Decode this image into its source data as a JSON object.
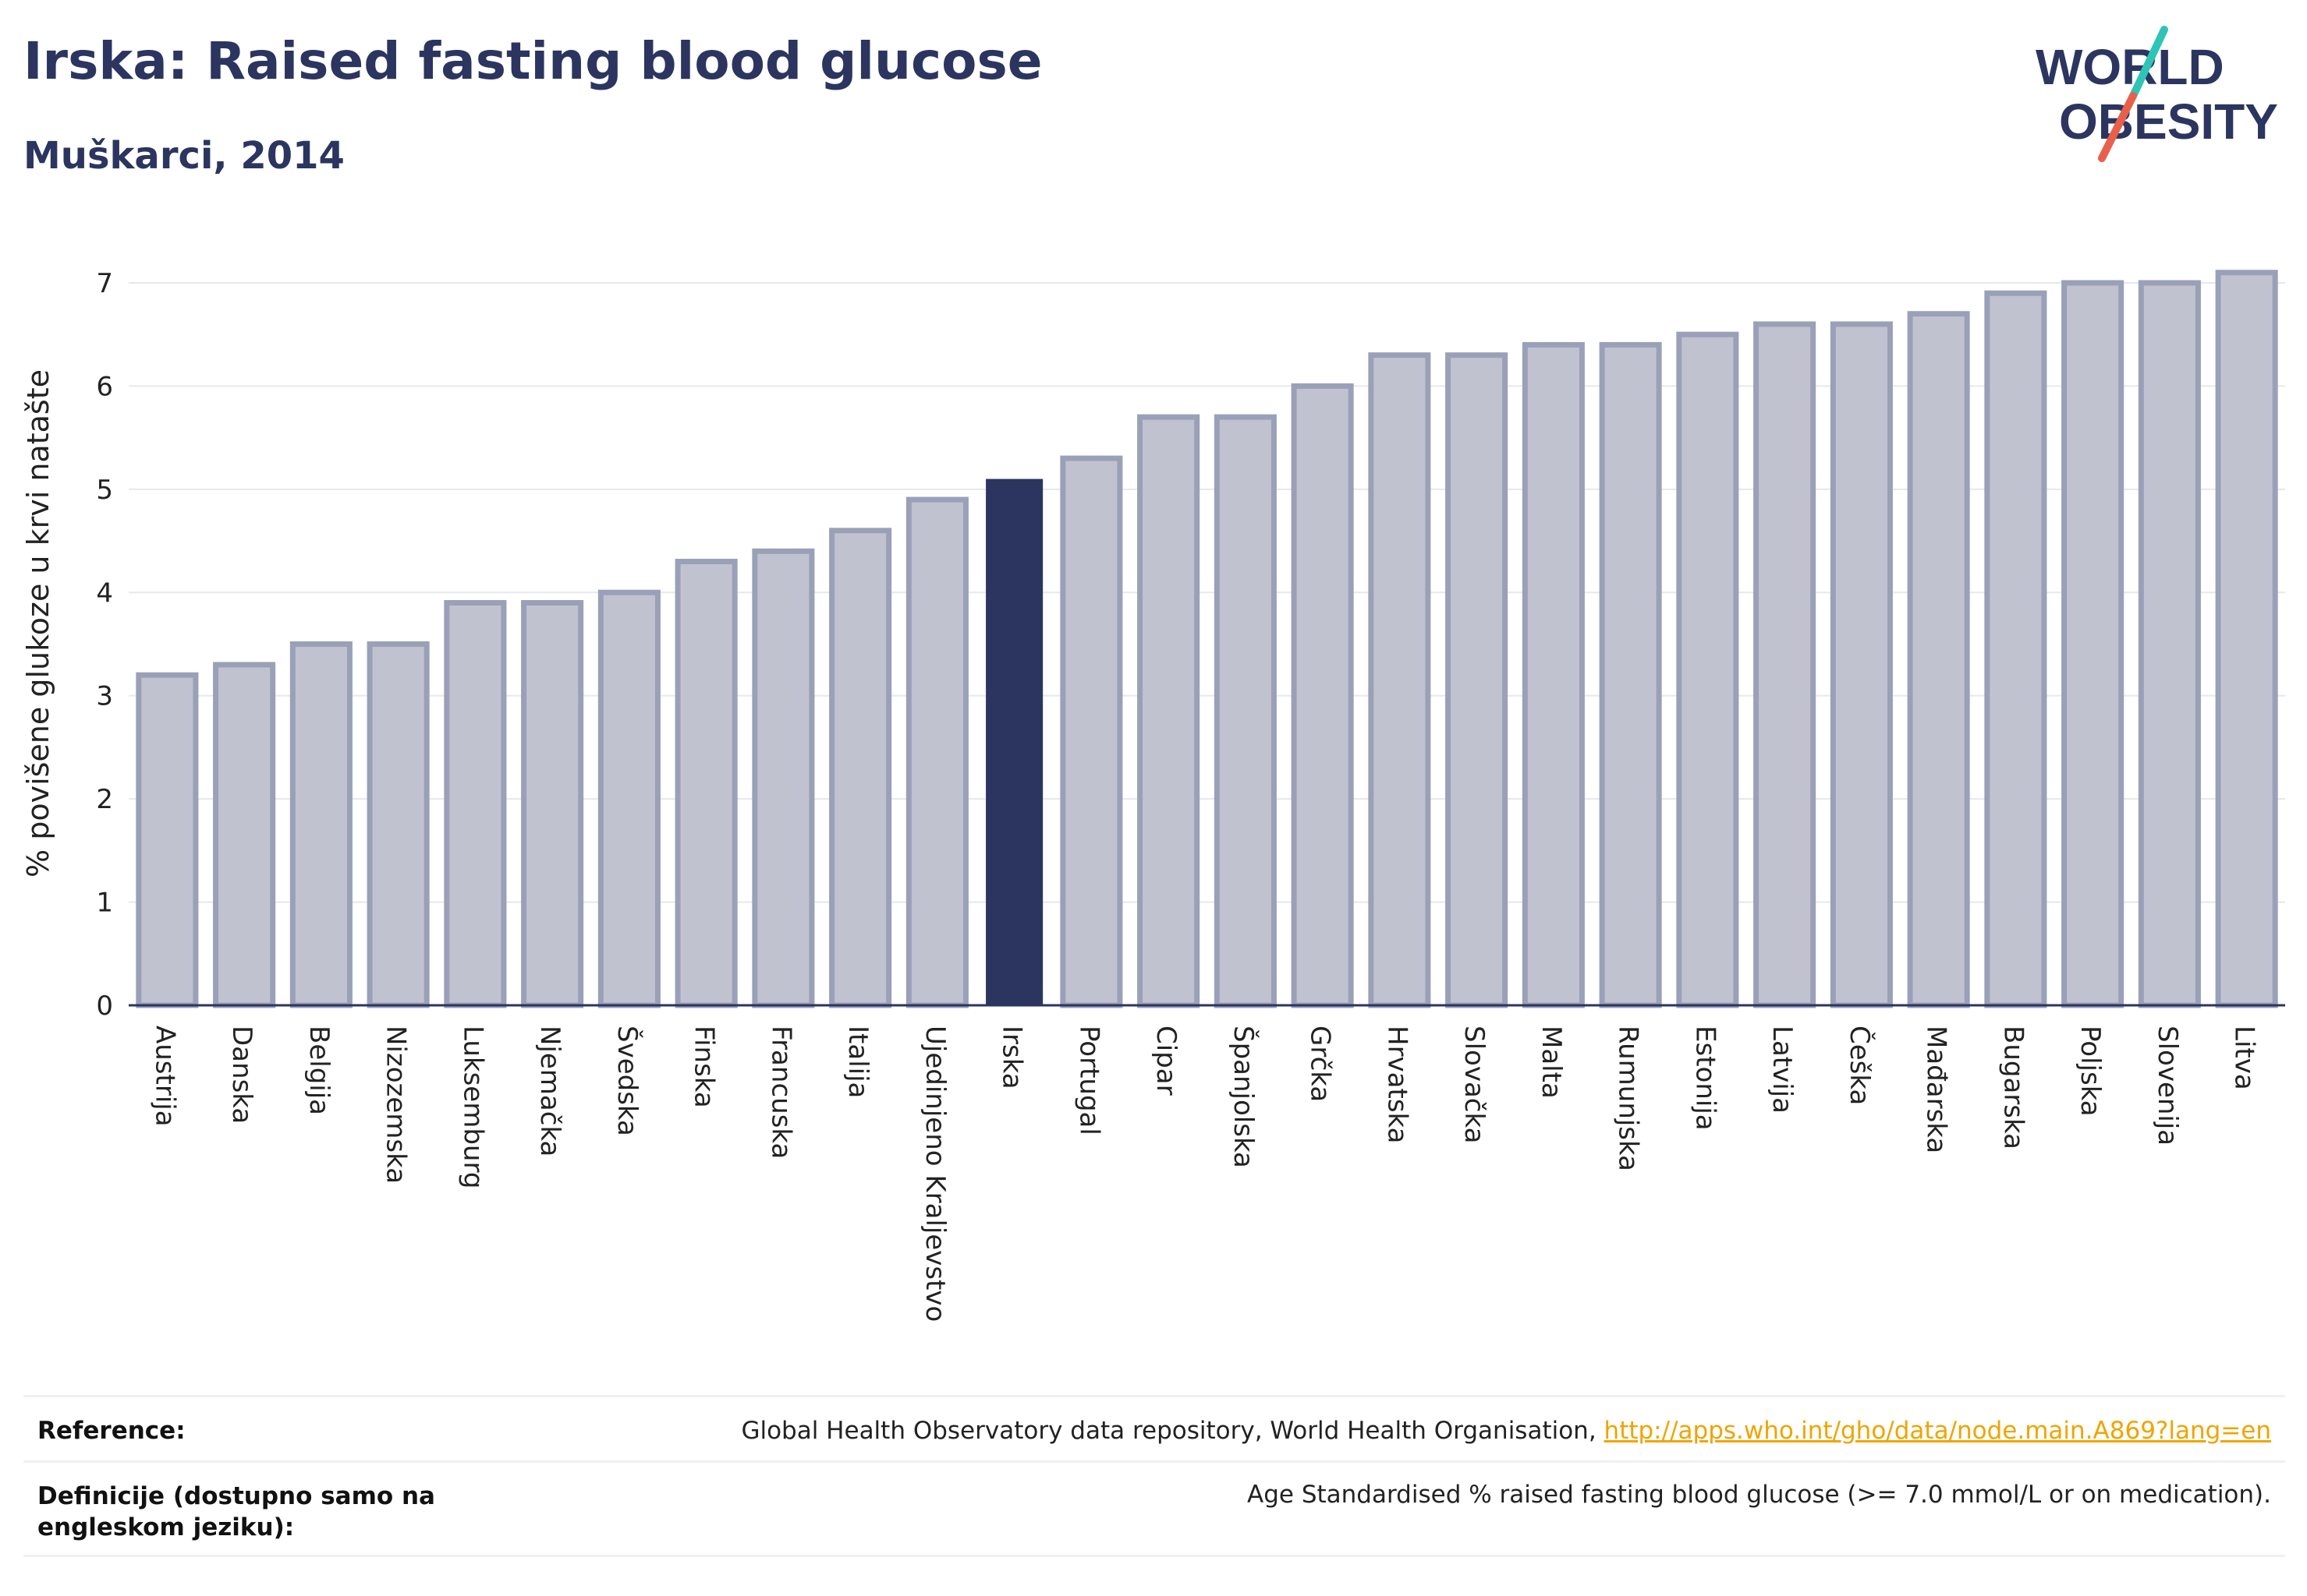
{
  "header": {
    "title": "Irska: Raised fasting blood glucose",
    "subtitle": "Muškarci, 2014"
  },
  "logo": {
    "line1": "WORLD",
    "line2": "OBESITY",
    "text_color": "#2b3560",
    "slash_teal": "#2ec4b6",
    "slash_coral": "#e8604c"
  },
  "chart_data": {
    "type": "bar",
    "title": "Irska: Raised fasting blood glucose",
    "subtitle": "Muškarci, 2014",
    "xlabel": "",
    "ylabel": "% povišene glukoze u krvi natašte",
    "ylim": [
      0,
      7.4
    ],
    "yticks": [
      0,
      1,
      2,
      3,
      4,
      5,
      6,
      7
    ],
    "grid": true,
    "highlight": "Irska",
    "colors": {
      "bar_fill": "#c0c3cf",
      "bar_stroke": "#9aa0b8",
      "highlight": "#2b3560",
      "grid": "#e6e8ee",
      "axis": "#2b3560"
    },
    "categories": [
      "Austrija",
      "Danska",
      "Belgija",
      "Nizozemska",
      "Luksemburg",
      "Njemačka",
      "Švedska",
      "Finska",
      "Francuska",
      "Italija",
      "Ujedinjeno Kraljevstvo",
      "Irska",
      "Portugal",
      "Cipar",
      "Španjolska",
      "Grčka",
      "Hrvatska",
      "Slovačka",
      "Malta",
      "Rumunjska",
      "Estonija",
      "Latvija",
      "Češka",
      "Mađarska",
      "Bugarska",
      "Poljska",
      "Slovenija",
      "Litva"
    ],
    "values": [
      3.2,
      3.3,
      3.5,
      3.5,
      3.9,
      3.9,
      4.0,
      4.3,
      4.4,
      4.6,
      4.9,
      5.1,
      5.3,
      5.7,
      5.7,
      6.0,
      6.3,
      6.3,
      6.4,
      6.4,
      6.5,
      6.6,
      6.6,
      6.7,
      6.9,
      7.0,
      7.0,
      7.1
    ]
  },
  "footer": {
    "reference_label": "Reference:",
    "reference_text": "Global Health Observatory data repository, World Health Organisation, ",
    "reference_link": "http://apps.who.int/gho/data/node.main.A869?lang=en",
    "definition_label": "Definicije (dostupno samo na engleskom jeziku):",
    "definition_text": "Age Standardised % raised fasting blood glucose (>= 7.0 mmol/L or on medication)."
  }
}
